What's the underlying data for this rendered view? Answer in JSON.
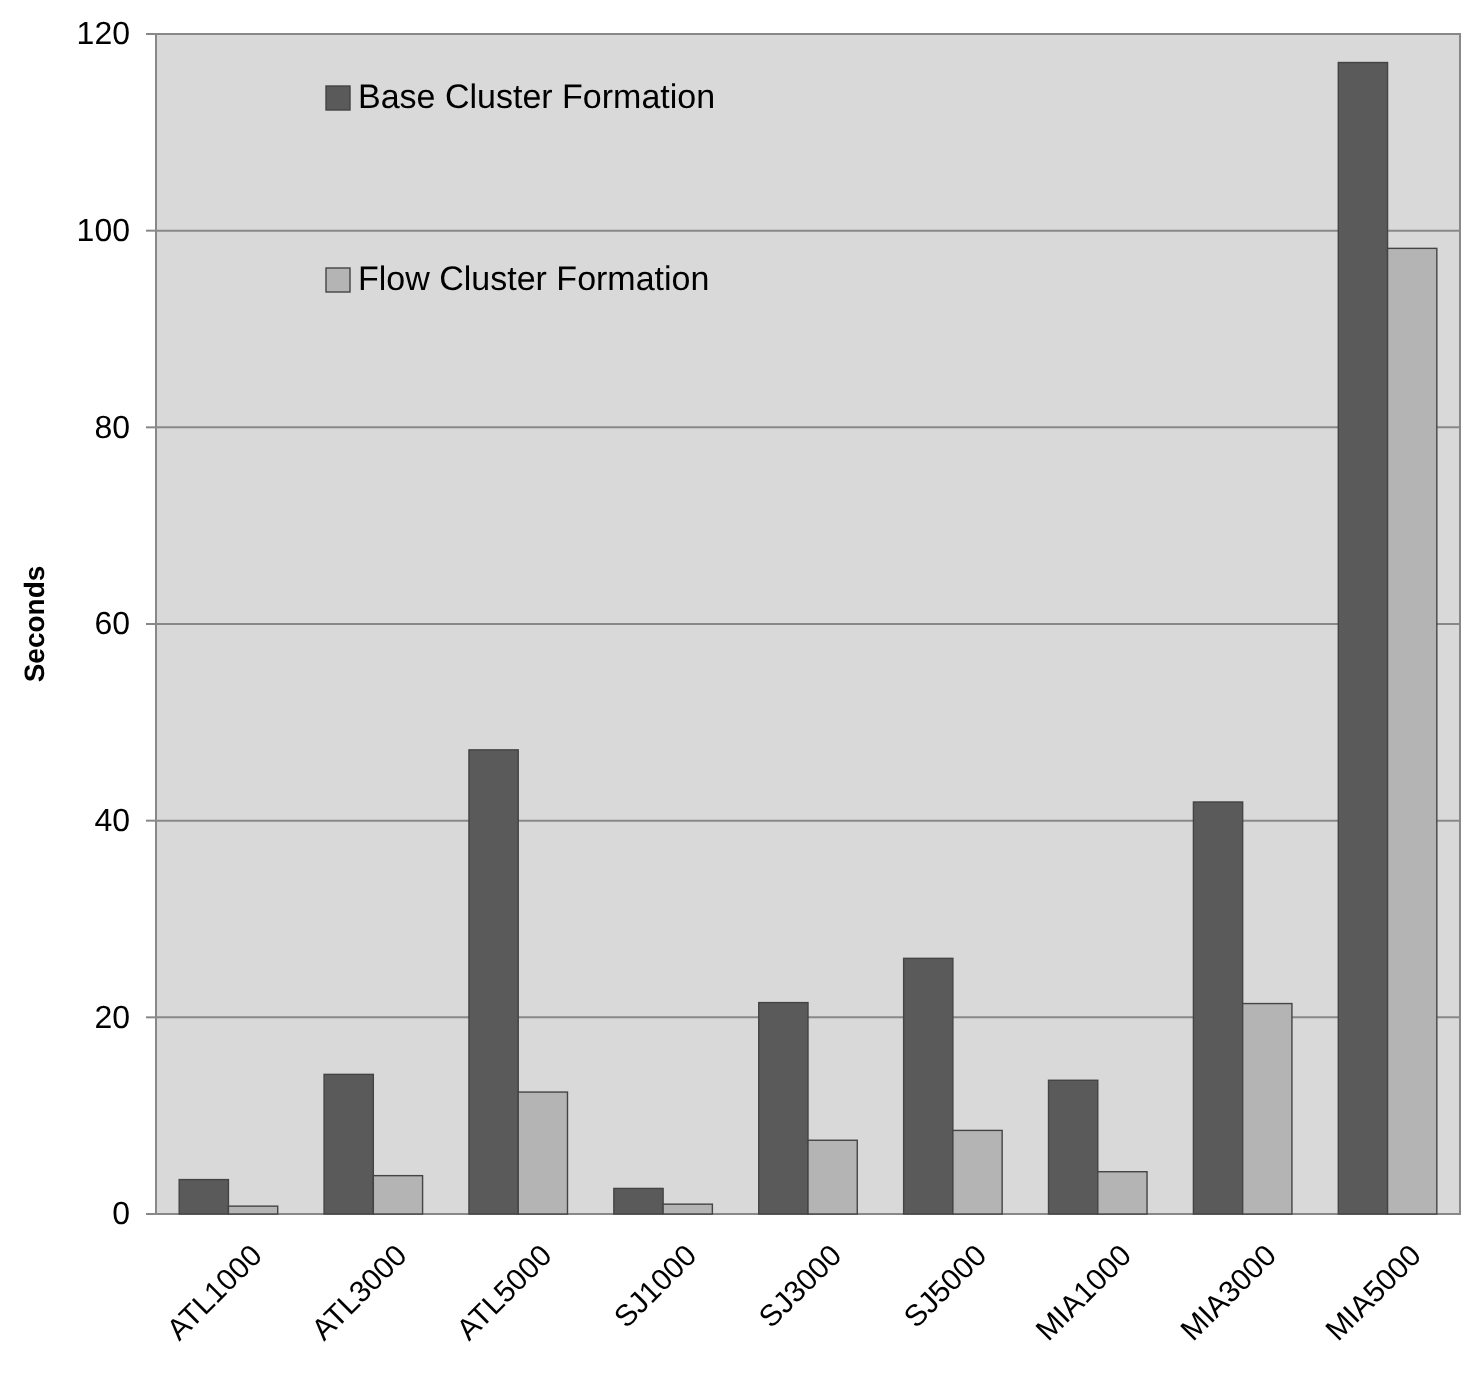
{
  "chart_data": {
    "type": "bar",
    "ylabel": "Seconds",
    "categories": [
      "ATL1000",
      "ATL3000",
      "ATL5000",
      "SJ1000",
      "SJ3000",
      "SJ5000",
      "MIA1000",
      "MIA3000",
      "MIA5000"
    ],
    "series": [
      {
        "name": "Base Cluster Formation",
        "color": "#5a5a5a",
        "values": [
          3.5,
          14.2,
          47.2,
          2.6,
          21.5,
          26,
          13.6,
          41.9,
          117.1
        ]
      },
      {
        "name": "Flow Cluster Formation",
        "color": "#b4b4b4",
        "values": [
          0.8,
          3.9,
          12.4,
          1.0,
          7.5,
          8.5,
          4.3,
          21.4,
          98.2
        ]
      }
    ],
    "ylim": [
      0,
      120
    ],
    "yticks": [
      0,
      20,
      40,
      60,
      80,
      100,
      120
    ],
    "grid": "y",
    "legend": "top left"
  }
}
